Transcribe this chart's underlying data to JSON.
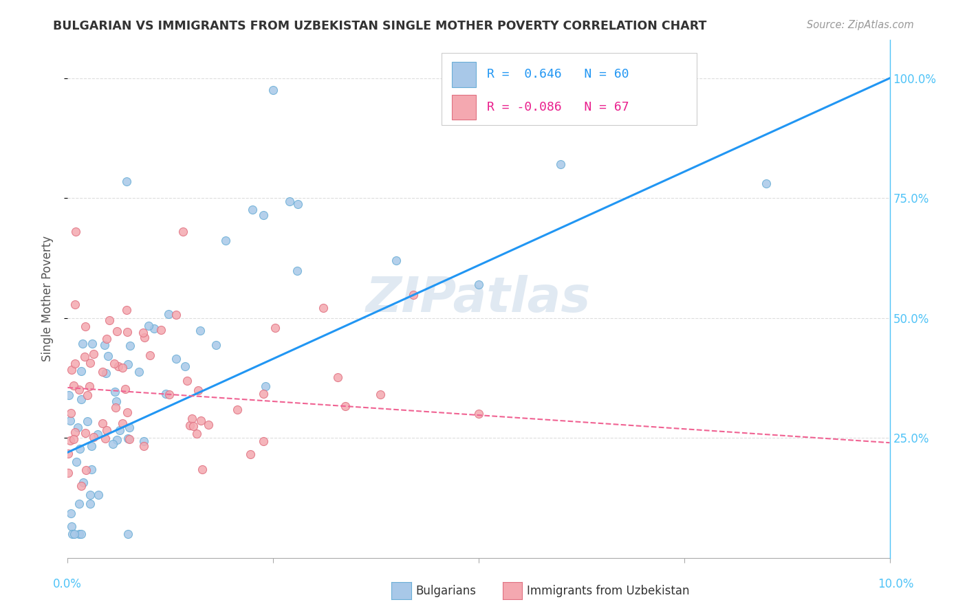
{
  "title": "BULGARIAN VS IMMIGRANTS FROM UZBEKISTAN SINGLE MOTHER POVERTY CORRELATION CHART",
  "source": "Source: ZipAtlas.com",
  "ylabel": "Single Mother Poverty",
  "blue_color": "#a8c8e8",
  "blue_edge_color": "#6aaed6",
  "pink_color": "#f4a8b0",
  "pink_edge_color": "#e07080",
  "blue_line_color": "#2196F3",
  "pink_line_color": "#f06292",
  "watermark": "ZIPatlas",
  "bg_color": "#ffffff",
  "blue_R": 0.646,
  "blue_N": 60,
  "pink_R": -0.086,
  "pink_N": 67,
  "grid_color": "#dddddd",
  "right_axis_color": "#4fc3f7",
  "title_color": "#333333",
  "source_color": "#999999"
}
